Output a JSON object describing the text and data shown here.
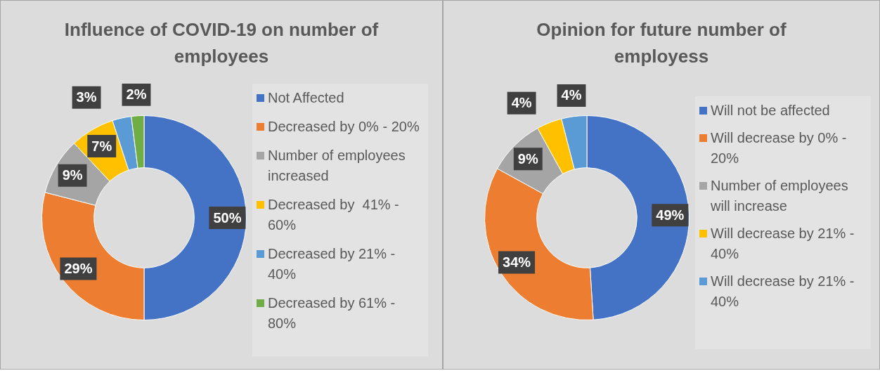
{
  "chart_data": [
    {
      "type": "donut",
      "title": "Influence of COVID-19 on number of employees",
      "categories": [
        "Not Affected",
        "Decreased by 0% - 20%",
        "Number of employees increased",
        "Decreased by  41% - 60%",
        "Decreased by 21% - 40%",
        "Decreased by 61% - 80%"
      ],
      "values": [
        50,
        29,
        9,
        7,
        3,
        2
      ],
      "value_labels": [
        "50%",
        "29%",
        "9%",
        "7%",
        "3%",
        "2%"
      ],
      "colors": [
        "#4472c4",
        "#ed7d31",
        "#a5a5a5",
        "#ffc000",
        "#5b9bd5",
        "#70ad47"
      ],
      "legend": "right"
    },
    {
      "type": "donut",
      "title": "Opinion for future number of employess",
      "categories": [
        "Will not be affected",
        "Will decrease by 0% - 20%",
        "Number of employees will increase",
        "Will decrease by 21% - 40%",
        "Will decrease by 21% - 40%"
      ],
      "values": [
        49,
        34,
        9,
        4,
        4
      ],
      "value_labels": [
        "49%",
        "34%",
        "9%",
        "4%",
        "4%"
      ],
      "colors": [
        "#4472c4",
        "#ed7d31",
        "#a5a5a5",
        "#ffc000",
        "#5b9bd5"
      ],
      "legend": "right"
    }
  ]
}
